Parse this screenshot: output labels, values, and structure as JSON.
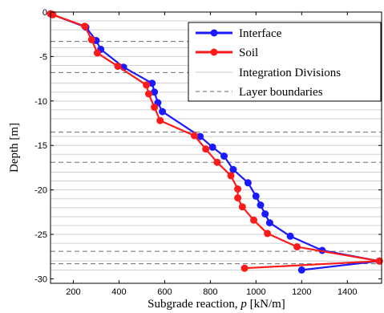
{
  "chart_data": {
    "type": "line",
    "xlabel_prefix": "Subgrade reaction, ",
    "xlabel_var": "p",
    "xlabel_suffix": " [kN/m]",
    "ylabel": "Depth [m]",
    "xlim": [
      100,
      1550
    ],
    "ylim": [
      -30.5,
      0
    ],
    "xticks": [
      200,
      400,
      600,
      800,
      1000,
      1200,
      1400
    ],
    "yticks": [
      0,
      -5,
      -10,
      -15,
      -20,
      -25,
      -30
    ],
    "integration_divisions": [
      -1,
      -2,
      -4,
      -5,
      -6,
      -8,
      -9,
      -10,
      -11,
      -12,
      -14,
      -15,
      -16,
      -18,
      -19,
      -20,
      -21,
      -22,
      -23,
      -24,
      -25,
      -26,
      -28,
      -29
    ],
    "layer_boundaries": [
      0,
      -3.3,
      -6.8,
      -13.5,
      -16.9,
      -26.9,
      -28.3
    ],
    "legend": {
      "position": "top-right",
      "entries": [
        "Interface",
        "Soil",
        "Integration Divisions",
        "Layer boundaries"
      ]
    },
    "series": [
      {
        "name": "Interface",
        "color": "#1a1aff",
        "x": [
          100,
          110,
          255,
          300,
          320,
          420,
          545,
          555,
          570,
          590,
          755,
          810,
          860,
          900,
          965,
          1000,
          1020,
          1040,
          1060,
          1150,
          1290,
          1540,
          1200
        ],
        "y": [
          -0.2,
          -0.3,
          -1.7,
          -3.2,
          -4.2,
          -6.2,
          -8.0,
          -9.0,
          -10.2,
          -11.2,
          -14.0,
          -15.2,
          -16.2,
          -17.7,
          -19.2,
          -20.7,
          -21.7,
          -22.7,
          -23.7,
          -25.2,
          -26.8,
          -28.0,
          -29.0
        ]
      },
      {
        "name": "Soil",
        "color": "#ff1a1a",
        "x": [
          100,
          110,
          250,
          280,
          305,
          395,
          520,
          530,
          555,
          580,
          730,
          780,
          830,
          890,
          920,
          920,
          940,
          990,
          1050,
          1180,
          1540,
          950
        ],
        "y": [
          -0.2,
          -0.3,
          -1.6,
          -3.1,
          -4.6,
          -6.1,
          -8.2,
          -9.2,
          -10.7,
          -12.2,
          -13.9,
          -15.4,
          -16.9,
          -18.4,
          -19.9,
          -20.9,
          -21.9,
          -23.4,
          -24.9,
          -26.4,
          -28.0,
          -28.8
        ]
      }
    ]
  }
}
